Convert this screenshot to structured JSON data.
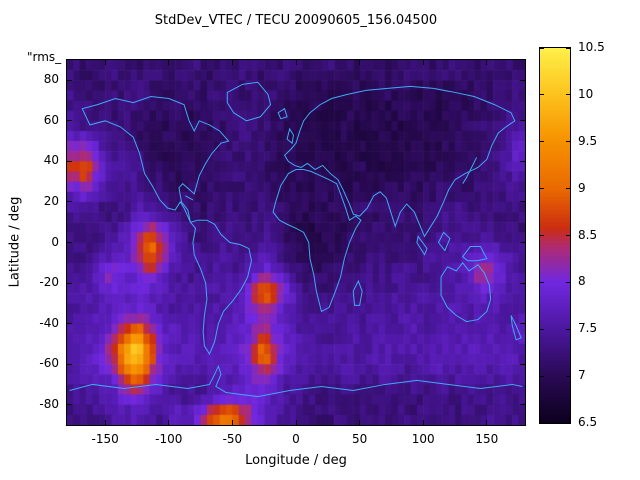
{
  "title": "StdDev_VTEC / TECU 20090605_156.04500",
  "annotation": "\"rms_",
  "colors": {
    "background": "#ffffff",
    "text": "#000000",
    "coastline": "#3fa9f5",
    "frame": "#000000"
  },
  "chart_data": {
    "type": "heatmap",
    "title": "StdDev_VTEC / TECU 20090605_156.04500",
    "xlabel": "Longitude / deg",
    "ylabel": "Latitude / deg",
    "x_range": [
      -180,
      180
    ],
    "y_range": [
      -90,
      90
    ],
    "x_ticks": {
      "values": [
        -150,
        -100,
        -50,
        0,
        50,
        100,
        150
      ],
      "labels": [
        "-150",
        "-100",
        "-50",
        "0",
        "50",
        "100",
        "150"
      ]
    },
    "y_ticks": {
      "values": [
        -80,
        -60,
        -40,
        -20,
        0,
        20,
        40,
        60,
        80
      ],
      "labels": [
        "-80",
        "-60",
        "-40",
        "-20",
        "0",
        "20",
        "40",
        "60",
        "80"
      ]
    },
    "colorbar": {
      "min": 6.5,
      "max": 10.5,
      "tick_values": [
        6.5,
        7,
        7.5,
        8,
        8.5,
        9,
        9.5,
        10,
        10.5
      ],
      "tick_labels": [
        "6.5",
        "7",
        "7.5",
        "8",
        "8.5",
        "9",
        "9.5",
        "10",
        "10.5"
      ]
    },
    "colormap_stops": [
      [
        0.0,
        "#0d001f"
      ],
      [
        0.125,
        "#2a0a55"
      ],
      [
        0.25,
        "#4c17a0"
      ],
      [
        0.375,
        "#7028e0"
      ],
      [
        0.47,
        "#b02a70"
      ],
      [
        0.52,
        "#cc2e10"
      ],
      [
        0.625,
        "#ea6a00"
      ],
      [
        0.75,
        "#f69100"
      ],
      [
        0.875,
        "#fdc21c"
      ],
      [
        1.0,
        "#fff04a"
      ]
    ],
    "grid": {
      "lon_start": -175,
      "lat_start": 85,
      "step": 10,
      "ncols": 36,
      "nrows": 18
    },
    "values": [
      [
        7.2,
        7.1,
        7.2,
        7.3,
        7.2,
        7.1,
        7.2,
        7.2,
        7.1,
        7.3,
        7.2,
        7.1,
        7.2,
        7.2,
        7.3,
        7.1,
        7.2,
        7.2,
        7.1,
        7.2,
        7.3,
        7.2,
        7.1,
        7.2,
        7.2,
        7.1,
        7.3,
        7.2,
        7.1,
        7.2,
        7.2,
        7.3,
        7.1,
        7.2,
        7.2,
        7.1
      ],
      [
        7.3,
        7.2,
        7.1,
        7.2,
        7.2,
        7.3,
        7.2,
        7.1,
        7.2,
        7.2,
        7.1,
        7.2,
        7.3,
        7.2,
        7.1,
        7.2,
        7.2,
        7.1,
        7.0,
        7.0,
        6.9,
        7.0,
        7.0,
        6.9,
        7.0,
        7.1,
        7.0,
        6.9,
        7.0,
        7.0,
        7.1,
        7.0,
        7.1,
        7.2,
        7.2,
        7.3
      ],
      [
        7.4,
        7.3,
        7.2,
        7.2,
        7.3,
        7.2,
        7.1,
        7.0,
        7.1,
        7.0,
        7.1,
        7.2,
        7.1,
        7.2,
        7.3,
        7.2,
        7.1,
        7.0,
        6.9,
        7.0,
        6.9,
        6.9,
        7.0,
        6.9,
        7.0,
        6.9,
        7.0,
        7.0,
        6.9,
        7.0,
        7.1,
        7.0,
        7.1,
        7.2,
        7.3,
        7.2
      ],
      [
        7.5,
        7.4,
        7.3,
        7.2,
        7.2,
        7.1,
        7.0,
        7.0,
        7.1,
        7.0,
        7.0,
        7.1,
        7.2,
        7.3,
        7.2,
        7.2,
        7.1,
        7.0,
        7.0,
        6.9,
        6.9,
        7.0,
        6.9,
        6.9,
        7.0,
        6.9,
        6.9,
        7.0,
        6.9,
        7.0,
        7.0,
        7.1,
        7.2,
        7.3,
        7.4,
        7.5
      ],
      [
        8.2,
        8.4,
        7.8,
        7.4,
        7.3,
        7.2,
        7.1,
        7.0,
        7.0,
        7.1,
        7.0,
        7.1,
        7.2,
        7.2,
        7.3,
        7.2,
        7.1,
        7.0,
        6.9,
        7.0,
        6.9,
        6.9,
        7.0,
        6.9,
        6.9,
        7.0,
        6.9,
        7.0,
        6.9,
        7.0,
        7.1,
        7.0,
        7.2,
        7.3,
        7.5,
        7.9
      ],
      [
        8.6,
        8.9,
        8.0,
        7.6,
        7.5,
        7.4,
        7.2,
        7.1,
        7.0,
        7.0,
        7.1,
        7.1,
        7.2,
        7.3,
        7.2,
        7.1,
        7.1,
        7.0,
        7.0,
        6.9,
        7.0,
        6.9,
        7.0,
        7.0,
        6.9,
        7.0,
        7.0,
        7.1,
        7.0,
        7.1,
        7.1,
        7.2,
        7.2,
        7.3,
        7.4,
        7.6
      ],
      [
        7.8,
        8.0,
        7.6,
        7.4,
        7.3,
        7.5,
        7.3,
        7.2,
        7.1,
        7.2,
        7.1,
        7.2,
        7.2,
        7.1,
        7.2,
        7.2,
        7.1,
        7.1,
        7.0,
        7.0,
        7.1,
        7.0,
        7.0,
        7.1,
        7.0,
        7.1,
        7.1,
        7.0,
        7.1,
        7.2,
        7.2,
        7.1,
        7.2,
        7.2,
        7.3,
        7.4
      ],
      [
        7.4,
        7.3,
        7.3,
        7.2,
        7.3,
        7.6,
        7.5,
        7.3,
        7.2,
        7.2,
        7.1,
        7.2,
        7.3,
        7.2,
        7.2,
        7.3,
        7.2,
        7.1,
        7.0,
        7.0,
        7.0,
        7.1,
        7.1,
        7.2,
        7.1,
        7.2,
        7.2,
        7.1,
        7.2,
        7.3,
        7.4,
        7.3,
        7.2,
        7.3,
        7.2,
        7.3
      ],
      [
        7.3,
        7.2,
        7.3,
        7.4,
        7.6,
        8.1,
        8.7,
        8.2,
        7.6,
        7.3,
        7.2,
        7.3,
        7.4,
        7.3,
        7.3,
        7.4,
        7.3,
        7.0,
        6.9,
        6.9,
        7.0,
        7.0,
        7.1,
        7.2,
        7.2,
        7.1,
        7.2,
        7.2,
        7.3,
        7.4,
        7.4,
        7.3,
        7.4,
        7.3,
        7.3,
        7.2
      ],
      [
        7.3,
        7.3,
        7.4,
        7.5,
        7.7,
        8.3,
        9.2,
        8.5,
        7.7,
        7.4,
        7.3,
        7.4,
        7.5,
        7.4,
        7.4,
        7.5,
        7.4,
        7.1,
        7.0,
        7.0,
        7.0,
        7.1,
        7.2,
        7.2,
        7.3,
        7.2,
        7.3,
        7.3,
        7.4,
        7.4,
        7.5,
        7.6,
        7.7,
        7.8,
        7.5,
        7.4
      ],
      [
        7.4,
        7.5,
        7.8,
        8.2,
        7.9,
        7.9,
        8.3,
        7.9,
        7.5,
        7.4,
        7.4,
        7.5,
        7.5,
        7.4,
        7.6,
        8.0,
        7.8,
        7.4,
        7.2,
        7.1,
        7.1,
        7.2,
        7.2,
        7.3,
        7.3,
        7.4,
        7.4,
        7.3,
        7.4,
        7.5,
        7.5,
        7.7,
        8.5,
        8.2,
        7.8,
        7.5
      ],
      [
        7.5,
        7.5,
        7.7,
        7.9,
        7.7,
        7.8,
        7.7,
        7.6,
        7.5,
        7.5,
        7.4,
        7.5,
        7.6,
        7.7,
        8.3,
        9.2,
        8.5,
        7.8,
        7.4,
        7.3,
        7.2,
        7.3,
        7.3,
        7.4,
        7.4,
        7.4,
        7.5,
        7.4,
        7.5,
        7.5,
        7.6,
        7.7,
        7.8,
        7.7,
        7.6,
        7.5
      ],
      [
        7.5,
        7.6,
        7.6,
        7.7,
        7.8,
        8.0,
        7.8,
        7.6,
        7.5,
        7.5,
        7.5,
        7.6,
        7.6,
        7.7,
        7.9,
        8.3,
        7.9,
        7.6,
        7.5,
        7.4,
        7.4,
        7.4,
        7.5,
        7.4,
        7.5,
        7.5,
        7.5,
        7.6,
        7.5,
        7.6,
        7.6,
        7.5,
        7.6,
        7.6,
        7.5,
        7.6
      ],
      [
        7.6,
        7.6,
        7.7,
        8.0,
        8.8,
        9.4,
        8.6,
        7.8,
        7.7,
        7.6,
        7.5,
        7.6,
        7.7,
        7.8,
        8.0,
        8.5,
        7.9,
        7.7,
        7.5,
        7.5,
        7.4,
        7.5,
        7.5,
        7.5,
        7.6,
        7.5,
        7.6,
        7.6,
        7.5,
        7.6,
        7.7,
        7.6,
        7.6,
        7.7,
        7.6,
        7.7
      ],
      [
        7.6,
        7.7,
        7.9,
        8.4,
        9.6,
        10.4,
        9.2,
        7.9,
        7.7,
        7.7,
        7.6,
        7.7,
        7.7,
        7.8,
        8.4,
        9.3,
        8.3,
        7.8,
        7.6,
        7.5,
        7.5,
        7.5,
        7.6,
        7.5,
        7.6,
        7.6,
        7.5,
        7.6,
        7.6,
        7.7,
        7.6,
        7.7,
        7.7,
        7.6,
        7.7,
        7.6
      ],
      [
        7.5,
        7.6,
        7.8,
        7.9,
        8.8,
        9.3,
        8.4,
        7.8,
        7.6,
        7.6,
        7.5,
        7.6,
        7.6,
        7.7,
        7.9,
        8.3,
        7.9,
        7.6,
        7.5,
        7.4,
        7.4,
        7.5,
        7.5,
        7.4,
        7.5,
        7.5,
        7.4,
        7.5,
        7.5,
        7.6,
        7.5,
        7.6,
        7.6,
        7.5,
        7.6,
        7.5
      ],
      [
        7.4,
        7.4,
        7.5,
        7.6,
        7.9,
        8.1,
        7.8,
        7.5,
        7.4,
        7.4,
        7.3,
        7.5,
        7.6,
        7.8,
        8.0,
        7.8,
        7.6,
        7.4,
        7.3,
        7.3,
        7.2,
        7.3,
        7.3,
        7.2,
        7.3,
        7.3,
        7.2,
        7.3,
        7.3,
        7.4,
        7.3,
        7.4,
        7.4,
        7.3,
        7.4,
        7.3
      ],
      [
        7.3,
        7.3,
        7.4,
        7.5,
        7.6,
        7.6,
        7.5,
        7.4,
        7.9,
        7.5,
        8.2,
        8.8,
        9.2,
        8.8,
        8.2,
        7.8,
        7.5,
        7.4,
        7.3,
        7.2,
        7.2,
        7.3,
        7.2,
        7.3,
        7.2,
        7.3,
        7.3,
        7.2,
        7.3,
        7.3,
        7.2,
        7.3,
        7.3,
        7.4,
        7.3,
        7.3
      ]
    ]
  }
}
